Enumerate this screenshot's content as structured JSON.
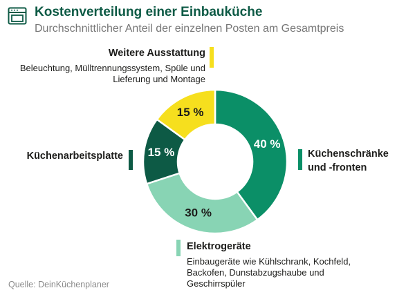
{
  "chart_data": {
    "type": "donut",
    "title": "Kostenverteilung einer Einbauküche",
    "subtitle": "Durchschnittlicher Anteil der einzelnen Posten am Gesamtpreis",
    "source": "Quelle: DeinKüchenplaner",
    "categories": [
      "Küchenschränke und -fronten",
      "Elektrogeräte",
      "Küchenarbeitsplatte",
      "Weitere Ausstattung"
    ],
    "descriptions": [
      null,
      "Einbaugeräte wie Kühlschrank, Kochfeld, Backofen, Dunstabzugshaube und Geschirrspüler",
      null,
      "Beleuchtung, Mülltrennungssystem, Spüle und Lieferung und Montage"
    ],
    "values": [
      40,
      30,
      15,
      15
    ],
    "value_labels": [
      "40 %",
      "30 %",
      "15 %",
      "15 %"
    ],
    "colors": [
      "#0b8f67",
      "#88d4b4",
      "#0d5a45",
      "#f6df1e"
    ]
  }
}
